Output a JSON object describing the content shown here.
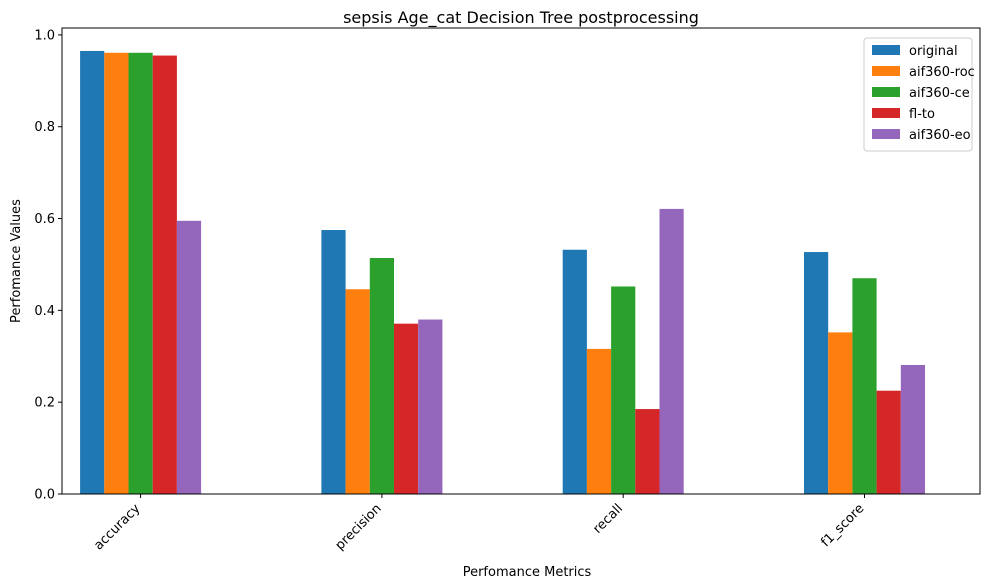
{
  "chart_data": {
    "type": "bar",
    "title": "sepsis Age_cat Decision Tree postprocessing",
    "xlabel": "Perfomance Metrics",
    "ylabel": "Perfomance Values",
    "categories": [
      "accuracy",
      "precision",
      "recall",
      "f1_score"
    ],
    "ylim": [
      0,
      1.015
    ],
    "yticks": [
      "0.0",
      "0.2",
      "0.4",
      "0.6",
      "0.8",
      "1.0"
    ],
    "grid": false,
    "legend_position": "top-right",
    "series": [
      {
        "name": "original",
        "color": "#1f77b4",
        "values": [
          0.965,
          0.575,
          0.532,
          0.527
        ]
      },
      {
        "name": "aif360-roc",
        "color": "#ff7f0e",
        "values": [
          0.961,
          0.446,
          0.316,
          0.352
        ]
      },
      {
        "name": "aif360-ce",
        "color": "#2ca02c",
        "values": [
          0.961,
          0.514,
          0.452,
          0.47
        ]
      },
      {
        "name": "fl-to",
        "color": "#d62728",
        "values": [
          0.955,
          0.371,
          0.185,
          0.225
        ]
      },
      {
        "name": "aif360-eo",
        "color": "#9467bd",
        "values": [
          0.595,
          0.38,
          0.621,
          0.281
        ]
      }
    ]
  }
}
